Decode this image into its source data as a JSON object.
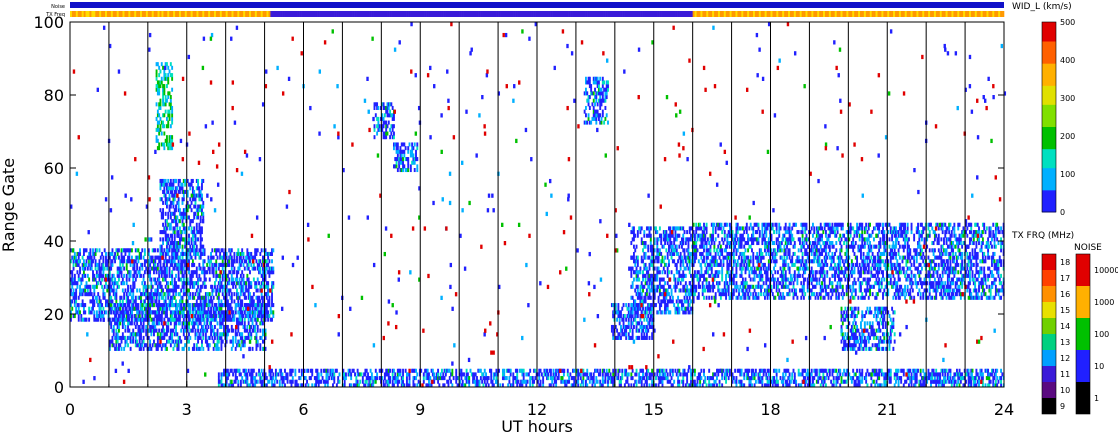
{
  "chart_data": {
    "type": "heatmap",
    "title": "",
    "xlabel": "UT hours",
    "ylabel": "Range Gate",
    "xlim": [
      0,
      24
    ],
    "ylim": [
      0,
      100
    ],
    "xticks": [
      "0",
      "3",
      "6",
      "9",
      "12",
      "15",
      "18",
      "21",
      "24"
    ],
    "yticks": [
      "0",
      "20",
      "40",
      "60",
      "80",
      "100"
    ],
    "scan_boundaries_ut": [
      1,
      2,
      3,
      4,
      5,
      6,
      7,
      8,
      9,
      10,
      11,
      12,
      13,
      14,
      15,
      16,
      17,
      18,
      19,
      20,
      21,
      22,
      23
    ],
    "top_strips": [
      {
        "label": "Noise",
        "color": "#1010c8"
      },
      {
        "label": "TX Freq",
        "color": "#ff9900",
        "alt_color": "#ffdd00",
        "alt_range_ut": [
          5.1,
          16.0
        ],
        "alt_range_color": "#3a1ad8"
      }
    ],
    "colorbars": [
      {
        "label": "WID_L (km/s)",
        "min": 0,
        "max": 500,
        "ticks": [
          "0",
          "100",
          "200",
          "300",
          "400",
          "500"
        ],
        "colors": [
          "#2020ff",
          "#00b0ff",
          "#00e0c0",
          "#00c000",
          "#80e000",
          "#e0e000",
          "#ffb000",
          "#ff6000",
          "#e00000"
        ]
      },
      {
        "label": "TX FRQ (MHz)",
        "ticks": [
          "9",
          "10",
          "11",
          "12",
          "13",
          "14",
          "15",
          "16",
          "17",
          "18"
        ],
        "colors": [
          "#000000",
          "#5a0a80",
          "#3a1ad8",
          "#00a0ff",
          "#00d080",
          "#70d000",
          "#e8e000",
          "#ff9000",
          "#ff4000",
          "#e00000"
        ]
      },
      {
        "label": "NOISE",
        "ticks": [
          "1",
          "10",
          "100",
          "1000",
          "10000"
        ],
        "colors": [
          "#000000",
          "#2020ff",
          "#00c000",
          "#ffb000",
          "#e00000"
        ]
      }
    ],
    "series": [
      {
        "ut_range": [
          0.0,
          5.2
        ],
        "gates": [
          18,
          37
        ],
        "level": "low"
      },
      {
        "ut_range": [
          1.0,
          5.0
        ],
        "gates": [
          10,
          22
        ],
        "level": "low"
      },
      {
        "ut_range": [
          2.3,
          3.4
        ],
        "gates": [
          36,
          56
        ],
        "level": "low"
      },
      {
        "ut_range": [
          2.2,
          2.6
        ],
        "gates": [
          65,
          88
        ],
        "level": "mid"
      },
      {
        "ut_range": [
          7.8,
          8.3
        ],
        "gates": [
          68,
          77
        ],
        "level": "low"
      },
      {
        "ut_range": [
          8.3,
          8.9
        ],
        "gates": [
          59,
          66
        ],
        "level": "low"
      },
      {
        "ut_range": [
          13.2,
          13.8
        ],
        "gates": [
          72,
          84
        ],
        "level": "low"
      },
      {
        "ut_range": [
          13.9,
          15.0
        ],
        "gates": [
          13,
          22
        ],
        "level": "low"
      },
      {
        "ut_range": [
          14.4,
          16.0
        ],
        "gates": [
          20,
          43
        ],
        "level": "low"
      },
      {
        "ut_range": [
          16.0,
          24.0
        ],
        "gates": [
          24,
          44
        ],
        "level": "low"
      },
      {
        "ut_range": [
          19.8,
          21.2
        ],
        "gates": [
          10,
          21
        ],
        "level": "low"
      },
      {
        "ut_range": [
          3.8,
          24.0
        ],
        "gates": [
          0,
          4
        ],
        "level": "low"
      },
      {
        "ut_range": [
          22.0,
          23.5
        ],
        "gates": [
          1,
          3
        ],
        "level": "low"
      }
    ]
  }
}
